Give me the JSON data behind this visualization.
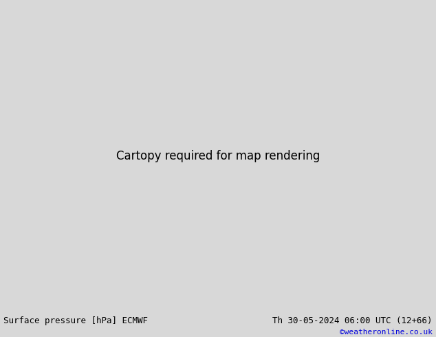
{
  "title_left": "Surface pressure [hPa] ECMWF",
  "title_right": "Th 30-05-2024 06:00 UTC (12+66)",
  "credit": "©weatheronline.co.uk",
  "ocean_color": "#d2d2d2",
  "land_color": "#b8e0a0",
  "land_color2": "#90c87a",
  "border_color": "#555555",
  "country_color": "#888888",
  "bottom_bar_color": "#d8d8d8",
  "title_fontsize": 9,
  "credit_color": "#0000dd",
  "red_isobar": "#cc0000",
  "blue_isobar": "#0000cc",
  "black_isobar": "#000000",
  "fig_width": 6.34,
  "fig_height": 4.9,
  "dpi": 100,
  "lon_min": -105,
  "lon_max": -10,
  "lat_min": -60,
  "lat_max": 15
}
